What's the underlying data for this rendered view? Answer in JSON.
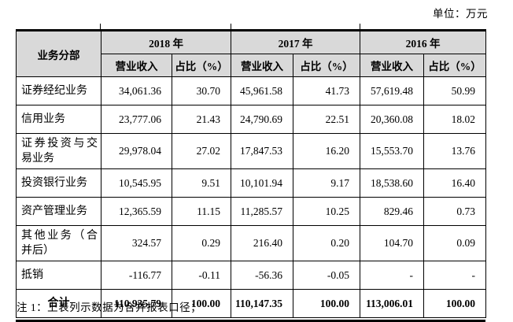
{
  "unit_label": "单位：万元",
  "table": {
    "col1_header": "业务分部",
    "year_groups": [
      {
        "year": "2018 年",
        "sub": [
          "营业收入",
          "占比（%）"
        ]
      },
      {
        "year": "2017 年",
        "sub": [
          "营业收入",
          "占比（%）"
        ]
      },
      {
        "year": "2016 年",
        "sub": [
          "营业收入",
          "占比（%）"
        ]
      }
    ],
    "rows": [
      {
        "label": "证券经纪业务",
        "values": [
          "34,061.36",
          "30.70",
          "45,961.58",
          "41.73",
          "57,619.48",
          "50.99"
        ]
      },
      {
        "label": "信用业务",
        "values": [
          "23,777.06",
          "21.43",
          "24,790.69",
          "22.51",
          "20,360.08",
          "18.02"
        ]
      },
      {
        "label": "证券投资与交易业务",
        "values": [
          "29,978.04",
          "27.02",
          "17,847.53",
          "16.20",
          "15,553.70",
          "13.76"
        ]
      },
      {
        "label": "投资银行业务",
        "values": [
          "10,545.95",
          "9.51",
          "10,101.94",
          "9.17",
          "18,538.60",
          "16.40"
        ]
      },
      {
        "label": "资产管理业务",
        "values": [
          "12,365.59",
          "11.15",
          "11,285.57",
          "10.25",
          "829.46",
          "0.73"
        ]
      },
      {
        "label": "其他业务（合并后）",
        "values": [
          "324.57",
          "0.29",
          "216.40",
          "0.20",
          "104.70",
          "0.09"
        ]
      },
      {
        "label": "抵销",
        "values": [
          "-116.77",
          "-0.11",
          "-56.36",
          "-0.05",
          "-",
          "-"
        ]
      }
    ],
    "total_row": {
      "label": "合计",
      "values": [
        "110,935.79",
        "100.00",
        "110,147.35",
        "100.00",
        "113,006.01",
        "100.00"
      ]
    }
  },
  "footnote": "注 1：上表列示数据为合并报表口径；",
  "colors": {
    "header_bg": "#d9d9d9",
    "border": "#000000",
    "text": "#000000",
    "page_bg": "#ffffff"
  }
}
